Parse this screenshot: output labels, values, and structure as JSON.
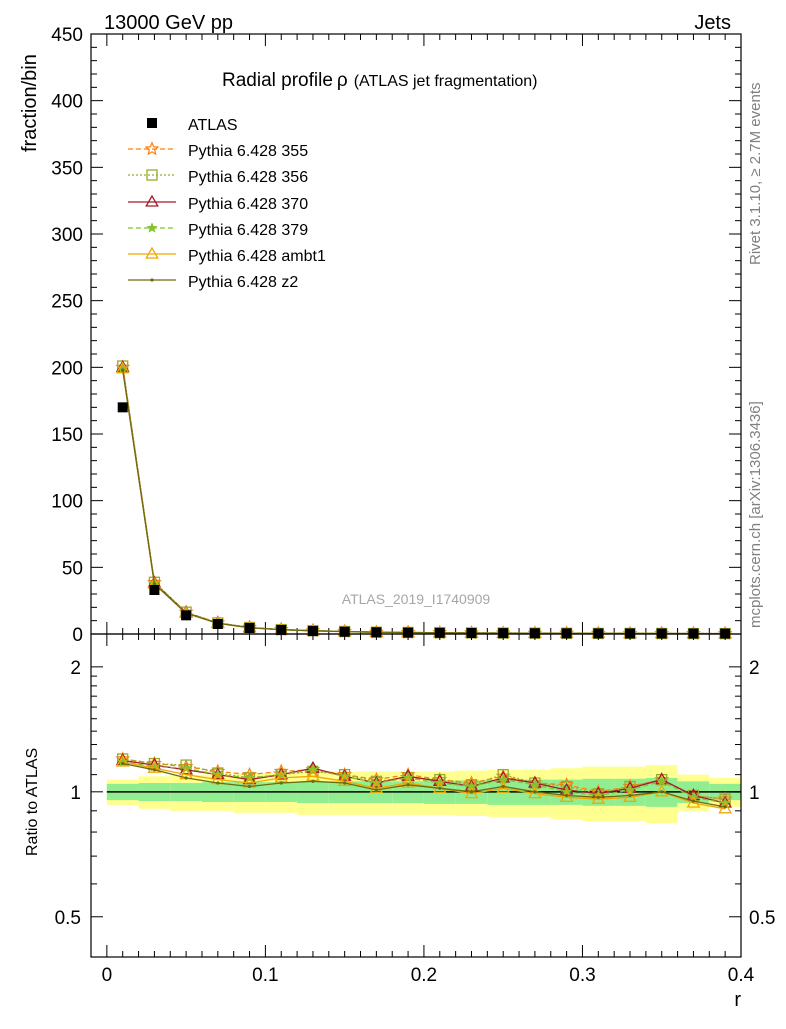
{
  "header": {
    "left": "13000 GeV pp",
    "right": "Jets"
  },
  "side": {
    "rivet": "Rivet 3.1.10, ≥ 2.7M events",
    "mcplots": "mcplots.cern.ch [arXiv:1306.3436]"
  },
  "colors": {
    "band_stat": "#90ee90",
    "band_total": "#ffff90",
    "data": "#000000",
    "p355": "#ff7f0e",
    "p356": "#9aaa2a",
    "p370": "#a31a2a",
    "p379": "#88c030",
    "ambt1": "#f0a800",
    "z2": "#6b6b10"
  },
  "chart_data": [
    {
      "type": "scatter",
      "title": "Radial profile",
      "title_symbol": "ρ",
      "title_sub": "(ATLAS jet fragmentation)",
      "watermark": "ATLAS_2019_I1740909",
      "ylabel": "fraction/bin",
      "ylim": [
        0,
        450
      ],
      "xlim": [
        -0.01,
        0.4
      ],
      "yticks": [
        0,
        50,
        100,
        150,
        200,
        250,
        300,
        350,
        400,
        450
      ],
      "x": [
        0.01,
        0.03,
        0.05,
        0.07,
        0.09,
        0.11,
        0.13,
        0.15,
        0.17,
        0.19,
        0.21,
        0.23,
        0.25,
        0.27,
        0.29,
        0.31,
        0.33,
        0.35,
        0.37,
        0.39
      ],
      "data": {
        "name": "ATLAS",
        "values": [
          170,
          33,
          14,
          7.5,
          4.5,
          3.0,
          2.2,
          1.7,
          1.3,
          1.05,
          0.88,
          0.76,
          0.66,
          0.58,
          0.52,
          0.46,
          0.42,
          0.38,
          0.35,
          0.32
        ]
      },
      "series": [
        {
          "name": "Pythia 6.428 355",
          "key": "p355",
          "marker": "star",
          "dash": "5,3",
          "values": [
            200,
            38.5,
            16.3,
            8.4,
            4.9,
            3.4,
            2.5,
            1.9,
            1.35,
            1.15,
            0.95,
            0.8,
            0.72,
            0.61,
            0.54,
            0.46,
            0.43,
            0.41,
            0.34,
            0.31
          ]
        },
        {
          "name": "Pythia 6.428 356",
          "key": "p356",
          "marker": "square",
          "dash": "2,2",
          "values": [
            201,
            38.8,
            16.4,
            8.3,
            4.9,
            3.3,
            2.5,
            1.9,
            1.35,
            1.14,
            0.94,
            0.79,
            0.72,
            0.61,
            0.54,
            0.46,
            0.43,
            0.41,
            0.34,
            0.31
          ]
        },
        {
          "name": "Pythia 6.428 370",
          "key": "p370",
          "marker": "triangle",
          "dash": "",
          "values": [
            200,
            38.3,
            16.0,
            8.2,
            4.8,
            3.3,
            2.5,
            1.85,
            1.33,
            1.14,
            0.93,
            0.78,
            0.71,
            0.61,
            0.53,
            0.46,
            0.42,
            0.41,
            0.34,
            0.3
          ]
        },
        {
          "name": "Pythia 6.428 379",
          "key": "p379",
          "marker": "smallstar",
          "dash": "5,3",
          "values": [
            199,
            38.0,
            16.0,
            8.2,
            4.8,
            3.3,
            2.48,
            1.85,
            1.32,
            1.12,
            0.92,
            0.77,
            0.7,
            0.6,
            0.52,
            0.45,
            0.42,
            0.4,
            0.33,
            0.3
          ]
        },
        {
          "name": "Pythia 6.428 ambt1",
          "key": "ambt1",
          "marker": "triangle",
          "dash": "",
          "values": [
            199,
            37.5,
            15.5,
            7.9,
            4.65,
            3.2,
            2.4,
            1.8,
            1.31,
            1.1,
            0.9,
            0.75,
            0.67,
            0.57,
            0.5,
            0.44,
            0.4,
            0.38,
            0.33,
            0.29
          ]
        },
        {
          "name": "Pythia 6.428 z2",
          "key": "z2",
          "marker": "dot",
          "dash": "",
          "values": [
            198,
            37.6,
            15.6,
            8.0,
            4.7,
            3.2,
            2.42,
            1.82,
            1.32,
            1.11,
            0.91,
            0.76,
            0.68,
            0.58,
            0.51,
            0.44,
            0.41,
            0.39,
            0.33,
            0.29
          ]
        }
      ]
    },
    {
      "type": "line",
      "ylabel": "Ratio to ATLAS",
      "xlabel": "r",
      "ylim": [
        0.4,
        2.4
      ],
      "yscale": "log",
      "yticks": [
        0.5,
        1,
        2
      ],
      "xticks": [
        0,
        0.1,
        0.2,
        0.3,
        0.4
      ],
      "xtick_labels": [
        "0",
        "0.1",
        "0.2",
        "0.3",
        "0.4"
      ],
      "x": [
        0.01,
        0.03,
        0.05,
        0.07,
        0.09,
        0.11,
        0.13,
        0.15,
        0.17,
        0.19,
        0.21,
        0.23,
        0.25,
        0.27,
        0.29,
        0.31,
        0.33,
        0.35,
        0.37,
        0.39
      ],
      "band_stat": [
        0.045,
        0.05,
        0.05,
        0.055,
        0.055,
        0.055,
        0.06,
        0.06,
        0.06,
        0.06,
        0.065,
        0.065,
        0.07,
        0.07,
        0.07,
        0.075,
        0.075,
        0.08,
        0.06,
        0.045
      ],
      "band_total": [
        0.07,
        0.09,
        0.1,
        0.1,
        0.11,
        0.11,
        0.12,
        0.12,
        0.12,
        0.12,
        0.12,
        0.125,
        0.13,
        0.13,
        0.14,
        0.15,
        0.15,
        0.16,
        0.1,
        0.08
      ],
      "series": [
        {
          "name": "Pythia 6.428 355",
          "key": "p355",
          "marker": "star",
          "dash": "5,3",
          "values": [
            1.2,
            1.17,
            1.15,
            1.12,
            1.1,
            1.12,
            1.13,
            1.1,
            1.07,
            1.1,
            1.07,
            1.05,
            1.09,
            1.05,
            1.04,
            1.0,
            1.03,
            1.07,
            0.98,
            0.96
          ]
        },
        {
          "name": "Pythia 6.428 356",
          "key": "p356",
          "marker": "square",
          "dash": "2,2",
          "values": [
            1.2,
            1.17,
            1.16,
            1.11,
            1.08,
            1.1,
            1.12,
            1.1,
            1.06,
            1.08,
            1.07,
            1.04,
            1.1,
            1.05,
            1.03,
            0.99,
            1.03,
            1.07,
            0.98,
            0.96
          ]
        },
        {
          "name": "Pythia 6.428 370",
          "key": "p370",
          "marker": "triangle",
          "dash": "",
          "values": [
            1.19,
            1.16,
            1.13,
            1.1,
            1.07,
            1.1,
            1.14,
            1.09,
            1.05,
            1.09,
            1.06,
            1.03,
            1.08,
            1.05,
            1.01,
            0.99,
            1.02,
            1.07,
            0.98,
            0.94
          ]
        },
        {
          "name": "Pythia 6.428 379",
          "key": "p379",
          "marker": "smallstar",
          "dash": "5,3",
          "values": [
            1.18,
            1.15,
            1.14,
            1.1,
            1.08,
            1.1,
            1.13,
            1.09,
            1.05,
            1.08,
            1.05,
            1.03,
            1.07,
            1.04,
            1.0,
            0.98,
            1.01,
            1.06,
            0.97,
            0.94
          ]
        },
        {
          "name": "Pythia 6.428 ambt1",
          "key": "ambt1",
          "marker": "triangle",
          "dash": "",
          "values": [
            1.18,
            1.14,
            1.1,
            1.07,
            1.05,
            1.08,
            1.09,
            1.06,
            1.02,
            1.05,
            1.02,
            0.99,
            1.02,
            0.99,
            0.97,
            0.96,
            0.97,
            1.0,
            0.94,
            0.91
          ]
        },
        {
          "name": "Pythia 6.428 z2",
          "key": "z2",
          "marker": "dot",
          "dash": "",
          "values": [
            1.17,
            1.13,
            1.08,
            1.05,
            1.03,
            1.05,
            1.06,
            1.05,
            1.01,
            1.04,
            1.02,
            1.0,
            1.03,
            1.0,
            0.98,
            0.97,
            0.98,
            1.0,
            0.95,
            0.92
          ]
        }
      ]
    }
  ]
}
